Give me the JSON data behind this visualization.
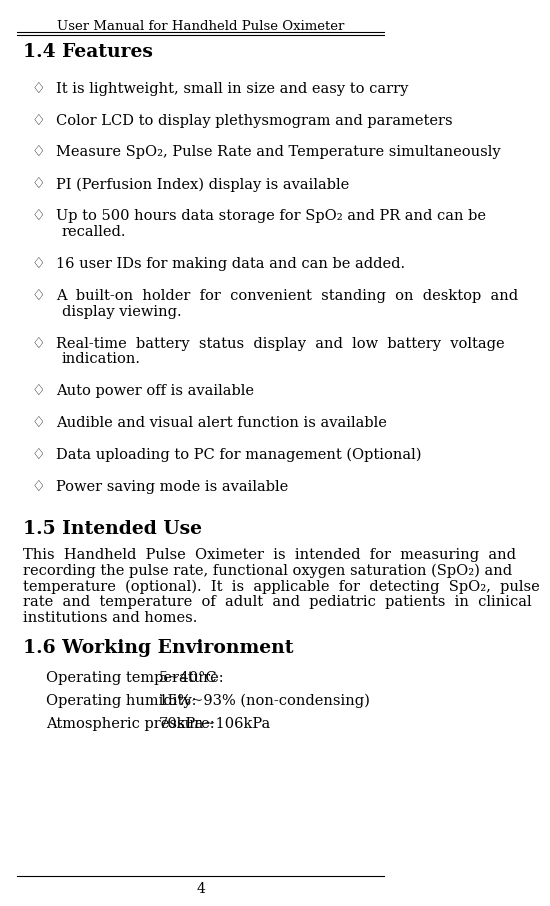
{
  "header": "User Manual for Handheld Pulse Oximeter",
  "page_number": "4",
  "bg_color": "#ffffff",
  "text_color": "#000000",
  "section_14_title": "1.4 Features",
  "bullet_symbol": "♢",
  "bullets": [
    "It is lightweight, small in size and easy to carry",
    "Color LCD to display plethysmogram and parameters",
    "Measure SpO₂, Pulse Rate and Temperature simultaneously",
    "PI (Perfusion Index) display is available",
    "Up to 500 hours data storage for SpO₂ and PR and can be\nrecalled.",
    "16 user IDs for making data and can be added.",
    "A  built-on  holder  for  convenient  standing  on  desktop  and\ndisplay viewing.",
    "Real-time  battery  status  display  and  low  battery  voltage\nindication.",
    "Auto power off is available",
    "Audible and visual alert function is available",
    "Data uploading to PC for management (Optional)",
    "Power saving mode is available"
  ],
  "section_15_title": "1.5 Intended Use",
  "intended_use_text": "This  Handheld  Pulse  Oximeter  is  intended  for  measuring  and\nrecording the pulse rate, functional oxygen saturation (SpO₂) and\ntemperature  (optional).  It  is  applicable  for  detecting  SpO₂,  pulse\nrate  and  temperature  of  adult  and  pediatric  patients  in  clinical\ninstitutions and homes.",
  "section_16_title": "1.6 Working Environment",
  "working_env": [
    [
      "Operating temperature:",
      "5~40°C"
    ],
    [
      "Operating humidity:",
      "15%~93% (non-condensing)"
    ],
    [
      "Atmospheric pressure:",
      "70kPa~106kPa"
    ]
  ]
}
